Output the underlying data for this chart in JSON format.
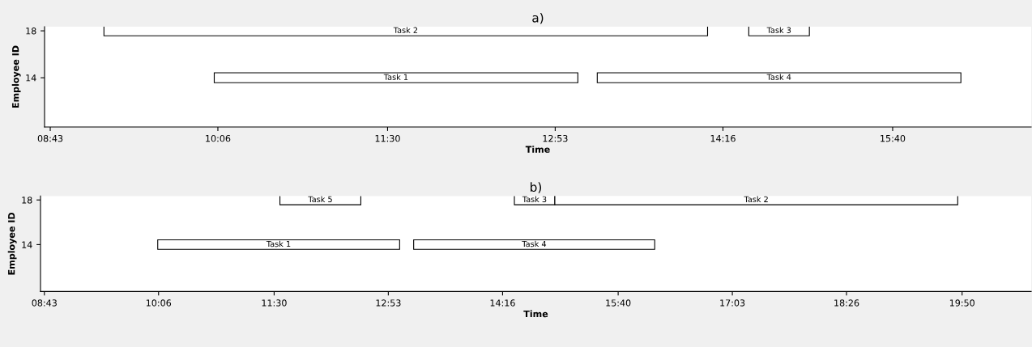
{
  "chart_data": [
    {
      "type": "bar",
      "orientation": "horizontal",
      "title": "a)",
      "xlabel": "Time",
      "ylabel": "Employee ID",
      "categories": [
        "18",
        null,
        null,
        null,
        "14",
        null,
        null,
        null,
        null
      ],
      "xlim": [
        8.67,
        16.81
      ],
      "xticks": [
        {
          "value": 8.717,
          "label": "08:43"
        },
        {
          "value": 10.1,
          "label": "10:06"
        },
        {
          "value": 11.5,
          "label": "11:30"
        },
        {
          "value": 12.883,
          "label": "12:53"
        },
        {
          "value": 14.267,
          "label": "14:16"
        },
        {
          "value": 15.667,
          "label": "15:40"
        }
      ],
      "series": [
        {
          "name": "Task 2",
          "color": "#ffffff",
          "values": [
            4.98,
            null,
            null,
            null,
            null,
            null,
            null,
            null,
            null
          ],
          "base": [
            9.16,
            null,
            null,
            null,
            null,
            null,
            null,
            null,
            null
          ]
        },
        {
          "name": "Task 3",
          "color": "#ffffff",
          "values": [
            0.5,
            null,
            null,
            null,
            null,
            null,
            null,
            null,
            null
          ],
          "base": [
            14.48,
            null,
            null,
            null,
            null,
            null,
            null,
            null,
            null
          ]
        },
        {
          "name": "Task 1",
          "color": "#ffffff",
          "values": [
            null,
            null,
            null,
            null,
            3.0,
            null,
            null,
            null,
            null
          ],
          "base": [
            null,
            null,
            null,
            null,
            10.07,
            null,
            null,
            null,
            null
          ]
        },
        {
          "name": "Task 4",
          "color": "#ffffff",
          "values": [
            null,
            null,
            null,
            null,
            3.0,
            null,
            null,
            null,
            null
          ],
          "base": [
            null,
            null,
            null,
            null,
            13.23,
            null,
            null,
            null,
            null
          ]
        }
      ]
    },
    {
      "type": "bar",
      "orientation": "horizontal",
      "title": "b)",
      "xlabel": "Time",
      "ylabel": "Employee ID",
      "categories": [
        "18",
        null,
        null,
        null,
        "14",
        null,
        null,
        null,
        null
      ],
      "xlim": [
        8.67,
        20.67
      ],
      "xticks": [
        {
          "value": 8.717,
          "label": "08:43"
        },
        {
          "value": 10.1,
          "label": "10:06"
        },
        {
          "value": 11.5,
          "label": "11:30"
        },
        {
          "value": 12.883,
          "label": "12:53"
        },
        {
          "value": 14.267,
          "label": "14:16"
        },
        {
          "value": 15.667,
          "label": "15:40"
        },
        {
          "value": 17.05,
          "label": "17:03"
        },
        {
          "value": 18.433,
          "label": "18:26"
        },
        {
          "value": 19.833,
          "label": "19:50"
        }
      ],
      "series": [
        {
          "name": "Task 5",
          "color": "#ffffff",
          "values": [
            0.98,
            null,
            null,
            null,
            null,
            null,
            null,
            null,
            null
          ],
          "base": [
            11.57,
            null,
            null,
            null,
            null,
            null,
            null,
            null,
            null
          ]
        },
        {
          "name": "Task 3",
          "color": "#ffffff",
          "values": [
            0.49,
            null,
            null,
            null,
            null,
            null,
            null,
            null,
            null
          ],
          "base": [
            14.41,
            null,
            null,
            null,
            null,
            null,
            null,
            null,
            null
          ]
        },
        {
          "name": "Task 2",
          "color": "#ffffff",
          "values": [
            4.88,
            null,
            null,
            null,
            null,
            null,
            null,
            null,
            null
          ],
          "base": [
            14.9,
            null,
            null,
            null,
            null,
            null,
            null,
            null,
            null
          ]
        },
        {
          "name": "Task 1",
          "color": "#ffffff",
          "values": [
            null,
            null,
            null,
            null,
            2.93,
            null,
            null,
            null,
            null
          ],
          "base": [
            null,
            null,
            null,
            null,
            10.09,
            null,
            null,
            null,
            null
          ]
        },
        {
          "name": "Task 4",
          "color": "#ffffff",
          "values": [
            null,
            null,
            null,
            null,
            2.92,
            null,
            null,
            null,
            null
          ],
          "base": [
            null,
            null,
            null,
            null,
            13.19,
            null,
            null,
            null,
            null
          ]
        }
      ]
    }
  ]
}
